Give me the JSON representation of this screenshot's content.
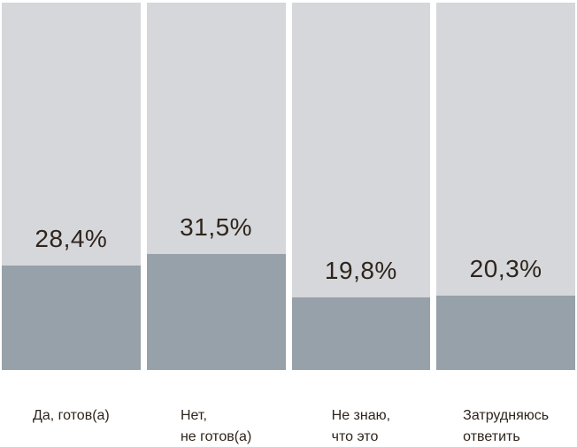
{
  "chart_data": {
    "type": "bar",
    "subtype": "vertical-percentage-fill-columns",
    "orientation": "vertical",
    "categories": [
      "Да, готов(а)",
      "Нет, не готов(а)",
      "Не знаю, что это",
      "Затрудняюсь ответить"
    ],
    "values": [
      28.4,
      31.5,
      19.8,
      20.3
    ],
    "value_labels": [
      "28,4%",
      "31,5%",
      "19,8%",
      "20,3%"
    ],
    "ylim": [
      0,
      100
    ],
    "grid": false,
    "legend_position": "none",
    "colors": {
      "track": "#d6d7db",
      "fill": "#97a1a9",
      "text": "#2e251c",
      "background": "#ffffff"
    },
    "bars": [
      {
        "value": 28.4,
        "value_label": "28,4%",
        "label_line1": "Да, готов(а)",
        "label_line2": ""
      },
      {
        "value": 31.5,
        "value_label": "31,5%",
        "label_line1": "Нет,",
        "label_line2": "не готов(а)"
      },
      {
        "value": 19.8,
        "value_label": "19,8%",
        "label_line1": "Не знаю,",
        "label_line2": "что это"
      },
      {
        "value": 20.3,
        "value_label": "20,3%",
        "label_line1": "Затрудняюсь",
        "label_line2": "ответить"
      }
    ]
  }
}
